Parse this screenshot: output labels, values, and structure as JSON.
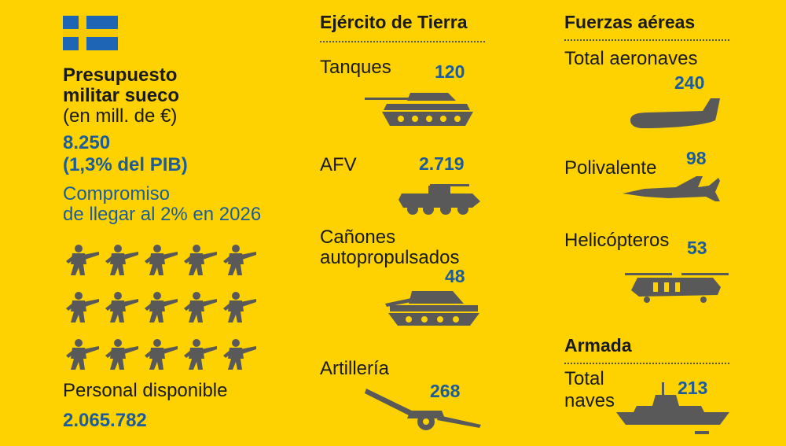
{
  "left": {
    "budget_title_1": "Presupuesto",
    "budget_title_2": "militar sueco",
    "budget_unit": "(en mill. de €)",
    "budget_value": "8.250",
    "budget_pib": "(1,3% del PIB)",
    "commitment_1": "Compromiso",
    "commitment_2": "de llegar al 2% en 2026",
    "personnel_label": "Personal disponible",
    "personnel_value": "2.065.782"
  },
  "army": {
    "title": "Ejército de Tierra",
    "tanks_label": "Tanques",
    "tanks_value": "120",
    "afv_label": "AFV",
    "afv_value": "2.719",
    "spg_label_1": "Cañones",
    "spg_label_2": "autopropulsados",
    "spg_value": "48",
    "artillery_label": "Artillería",
    "artillery_value": "268"
  },
  "air": {
    "title": "Fuerzas aéreas",
    "total_label": "Total aeronaves",
    "total_value": "240",
    "multirole_label": "Polivalente",
    "multirole_value": "98",
    "heli_label": "Helicópteros",
    "heli_value": "53"
  },
  "navy": {
    "title": "Armada",
    "total_label_1": "Total",
    "total_label_2": "naves",
    "total_value": "213"
  },
  "colors": {
    "background": "#fdd200",
    "accent": "#1d5c9b",
    "icon": "#595959"
  },
  "icons": [
    "sweden-flag-icon",
    "soldier-icon",
    "tank-icon",
    "afv-icon",
    "spg-icon",
    "artillery-icon",
    "transport-plane-icon",
    "fighter-jet-icon",
    "helicopter-icon",
    "warship-icon"
  ]
}
